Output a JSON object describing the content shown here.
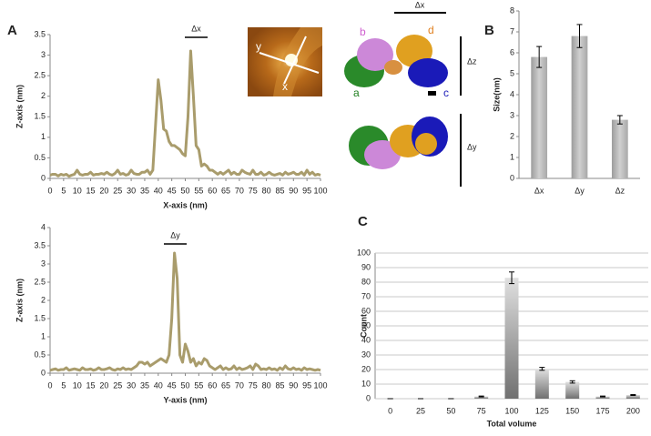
{
  "panels": [
    "A",
    "B",
    "C"
  ],
  "afm_image": {
    "labels": [
      "y",
      "x"
    ]
  },
  "structure": {
    "chain_labels": [
      "a",
      "b",
      "c",
      "d"
    ],
    "dimension_labels": [
      "Δx",
      "Δz",
      "Δy"
    ]
  },
  "chart_data": [
    {
      "type": "line",
      "x_label": "X-axis (nm)",
      "y_label": "Z-axis (nm)",
      "annotation": "Δx",
      "color": "#a99c6c",
      "x": [
        0,
        1,
        2,
        3,
        4,
        5,
        6,
        7,
        8,
        9,
        10,
        11,
        12,
        13,
        14,
        15,
        16,
        17,
        18,
        19,
        20,
        21,
        22,
        23,
        24,
        25,
        26,
        27,
        28,
        29,
        30,
        31,
        32,
        33,
        34,
        35,
        36,
        37,
        38,
        39,
        40,
        41,
        42,
        43,
        44,
        45,
        46,
        47,
        48,
        49,
        50,
        51,
        52,
        53,
        54,
        55,
        56,
        57,
        58,
        59,
        60,
        61,
        62,
        63,
        64,
        65,
        66,
        67,
        68,
        69,
        70,
        71,
        72,
        73,
        74,
        75,
        76,
        77,
        78,
        79,
        80,
        81,
        82,
        83,
        84,
        85,
        86,
        87,
        88,
        89,
        90,
        91,
        92,
        93,
        94,
        95,
        96,
        97,
        98,
        99,
        100
      ],
      "values": [
        0.08,
        0.1,
        0.1,
        0.06,
        0.1,
        0.08,
        0.1,
        0.05,
        0.08,
        0.1,
        0.2,
        0.1,
        0.08,
        0.1,
        0.1,
        0.15,
        0.08,
        0.1,
        0.1,
        0.12,
        0.1,
        0.15,
        0.1,
        0.08,
        0.12,
        0.2,
        0.1,
        0.12,
        0.08,
        0.1,
        0.2,
        0.12,
        0.1,
        0.1,
        0.15,
        0.15,
        0.2,
        0.1,
        0.2,
        1.3,
        2.4,
        1.9,
        1.2,
        1.15,
        0.9,
        0.8,
        0.8,
        0.75,
        0.7,
        0.6,
        0.55,
        1.5,
        3.1,
        2.0,
        0.8,
        0.7,
        0.3,
        0.35,
        0.3,
        0.2,
        0.2,
        0.15,
        0.1,
        0.15,
        0.1,
        0.15,
        0.2,
        0.1,
        0.15,
        0.1,
        0.1,
        0.2,
        0.15,
        0.12,
        0.1,
        0.2,
        0.1,
        0.1,
        0.15,
        0.08,
        0.1,
        0.15,
        0.1,
        0.08,
        0.1,
        0.12,
        0.08,
        0.15,
        0.1,
        0.12,
        0.15,
        0.1,
        0.1,
        0.15,
        0.08,
        0.2,
        0.1,
        0.15,
        0.08,
        0.1,
        0.08
      ],
      "xlim": [
        0,
        100
      ],
      "xticks": [
        0,
        5,
        10,
        15,
        20,
        25,
        30,
        35,
        40,
        45,
        50,
        55,
        60,
        65,
        70,
        75,
        80,
        85,
        90,
        95,
        100
      ],
      "ylim": [
        0,
        3.5
      ],
      "yticks": [
        0,
        0.5,
        1,
        1.5,
        2,
        2.5,
        3,
        3.5
      ],
      "grid": false
    },
    {
      "type": "line",
      "x_label": "Y-axis (nm)",
      "y_label": "Z-axis (nm)",
      "annotation": "Δy",
      "color": "#a99c6c",
      "x": [
        0,
        1,
        2,
        3,
        4,
        5,
        6,
        7,
        8,
        9,
        10,
        11,
        12,
        13,
        14,
        15,
        16,
        17,
        18,
        19,
        20,
        21,
        22,
        23,
        24,
        25,
        26,
        27,
        28,
        29,
        30,
        31,
        32,
        33,
        34,
        35,
        36,
        37,
        38,
        39,
        40,
        41,
        42,
        43,
        44,
        45,
        46,
        47,
        48,
        49,
        50,
        51,
        52,
        53,
        54,
        55,
        56,
        57,
        58,
        59,
        60,
        61,
        62,
        63,
        64,
        65,
        66,
        67,
        68,
        69,
        70,
        71,
        72,
        73,
        74,
        75,
        76,
        77,
        78,
        79,
        80,
        81,
        82,
        83,
        84,
        85,
        86,
        87,
        88,
        89,
        90,
        91,
        92,
        93,
        94,
        95,
        96,
        97,
        98,
        99,
        100
      ],
      "values": [
        0.08,
        0.1,
        0.12,
        0.08,
        0.1,
        0.1,
        0.15,
        0.08,
        0.1,
        0.12,
        0.1,
        0.08,
        0.15,
        0.1,
        0.1,
        0.12,
        0.08,
        0.1,
        0.15,
        0.1,
        0.1,
        0.12,
        0.15,
        0.1,
        0.08,
        0.12,
        0.1,
        0.15,
        0.1,
        0.12,
        0.1,
        0.15,
        0.2,
        0.3,
        0.3,
        0.25,
        0.3,
        0.2,
        0.25,
        0.3,
        0.35,
        0.4,
        0.35,
        0.3,
        0.5,
        1.5,
        3.3,
        2.6,
        0.5,
        0.3,
        0.8,
        0.6,
        0.3,
        0.4,
        0.2,
        0.3,
        0.25,
        0.4,
        0.35,
        0.2,
        0.15,
        0.1,
        0.15,
        0.2,
        0.1,
        0.15,
        0.1,
        0.12,
        0.2,
        0.1,
        0.15,
        0.1,
        0.12,
        0.15,
        0.2,
        0.1,
        0.25,
        0.2,
        0.1,
        0.12,
        0.1,
        0.15,
        0.1,
        0.12,
        0.08,
        0.15,
        0.1,
        0.2,
        0.12,
        0.1,
        0.15,
        0.1,
        0.12,
        0.08,
        0.15,
        0.1,
        0.12,
        0.1,
        0.08,
        0.1,
        0.08
      ],
      "xlim": [
        0,
        100
      ],
      "xticks": [
        0,
        5,
        10,
        15,
        20,
        25,
        30,
        35,
        40,
        45,
        50,
        55,
        60,
        65,
        70,
        75,
        80,
        85,
        90,
        95,
        100
      ],
      "ylim": [
        0,
        4
      ],
      "yticks": [
        0,
        0.5,
        1,
        1.5,
        2,
        2.5,
        3,
        3.5,
        4
      ],
      "grid": false
    },
    {
      "type": "bar",
      "y_label": "Size(nm)",
      "color": "#b5b5b5",
      "categories": [
        "Δx",
        "Δy",
        "Δz"
      ],
      "values": [
        5.8,
        6.8,
        2.8
      ],
      "errors": [
        0.5,
        0.55,
        0.2
      ],
      "ylim": [
        0,
        8
      ],
      "yticks": [
        0,
        1,
        2,
        3,
        4,
        5,
        6,
        7,
        8
      ],
      "grid": false
    },
    {
      "type": "bar",
      "x_label": "Total volume",
      "y_label": "Count",
      "color": "#9a9a9a",
      "categories": [
        "0",
        "25",
        "50",
        "75",
        "100",
        "125",
        "150",
        "175",
        "200"
      ],
      "values": [
        0,
        0,
        0,
        1.5,
        83,
        20.5,
        11.5,
        1.5,
        2.5
      ],
      "errors": [
        0,
        0,
        0,
        0.3,
        4,
        1,
        0.8,
        0.3,
        0.3
      ],
      "ylim": [
        0,
        100
      ],
      "yticks": [
        0,
        10,
        20,
        30,
        40,
        50,
        60,
        70,
        80,
        90,
        100
      ],
      "grid": true
    }
  ]
}
